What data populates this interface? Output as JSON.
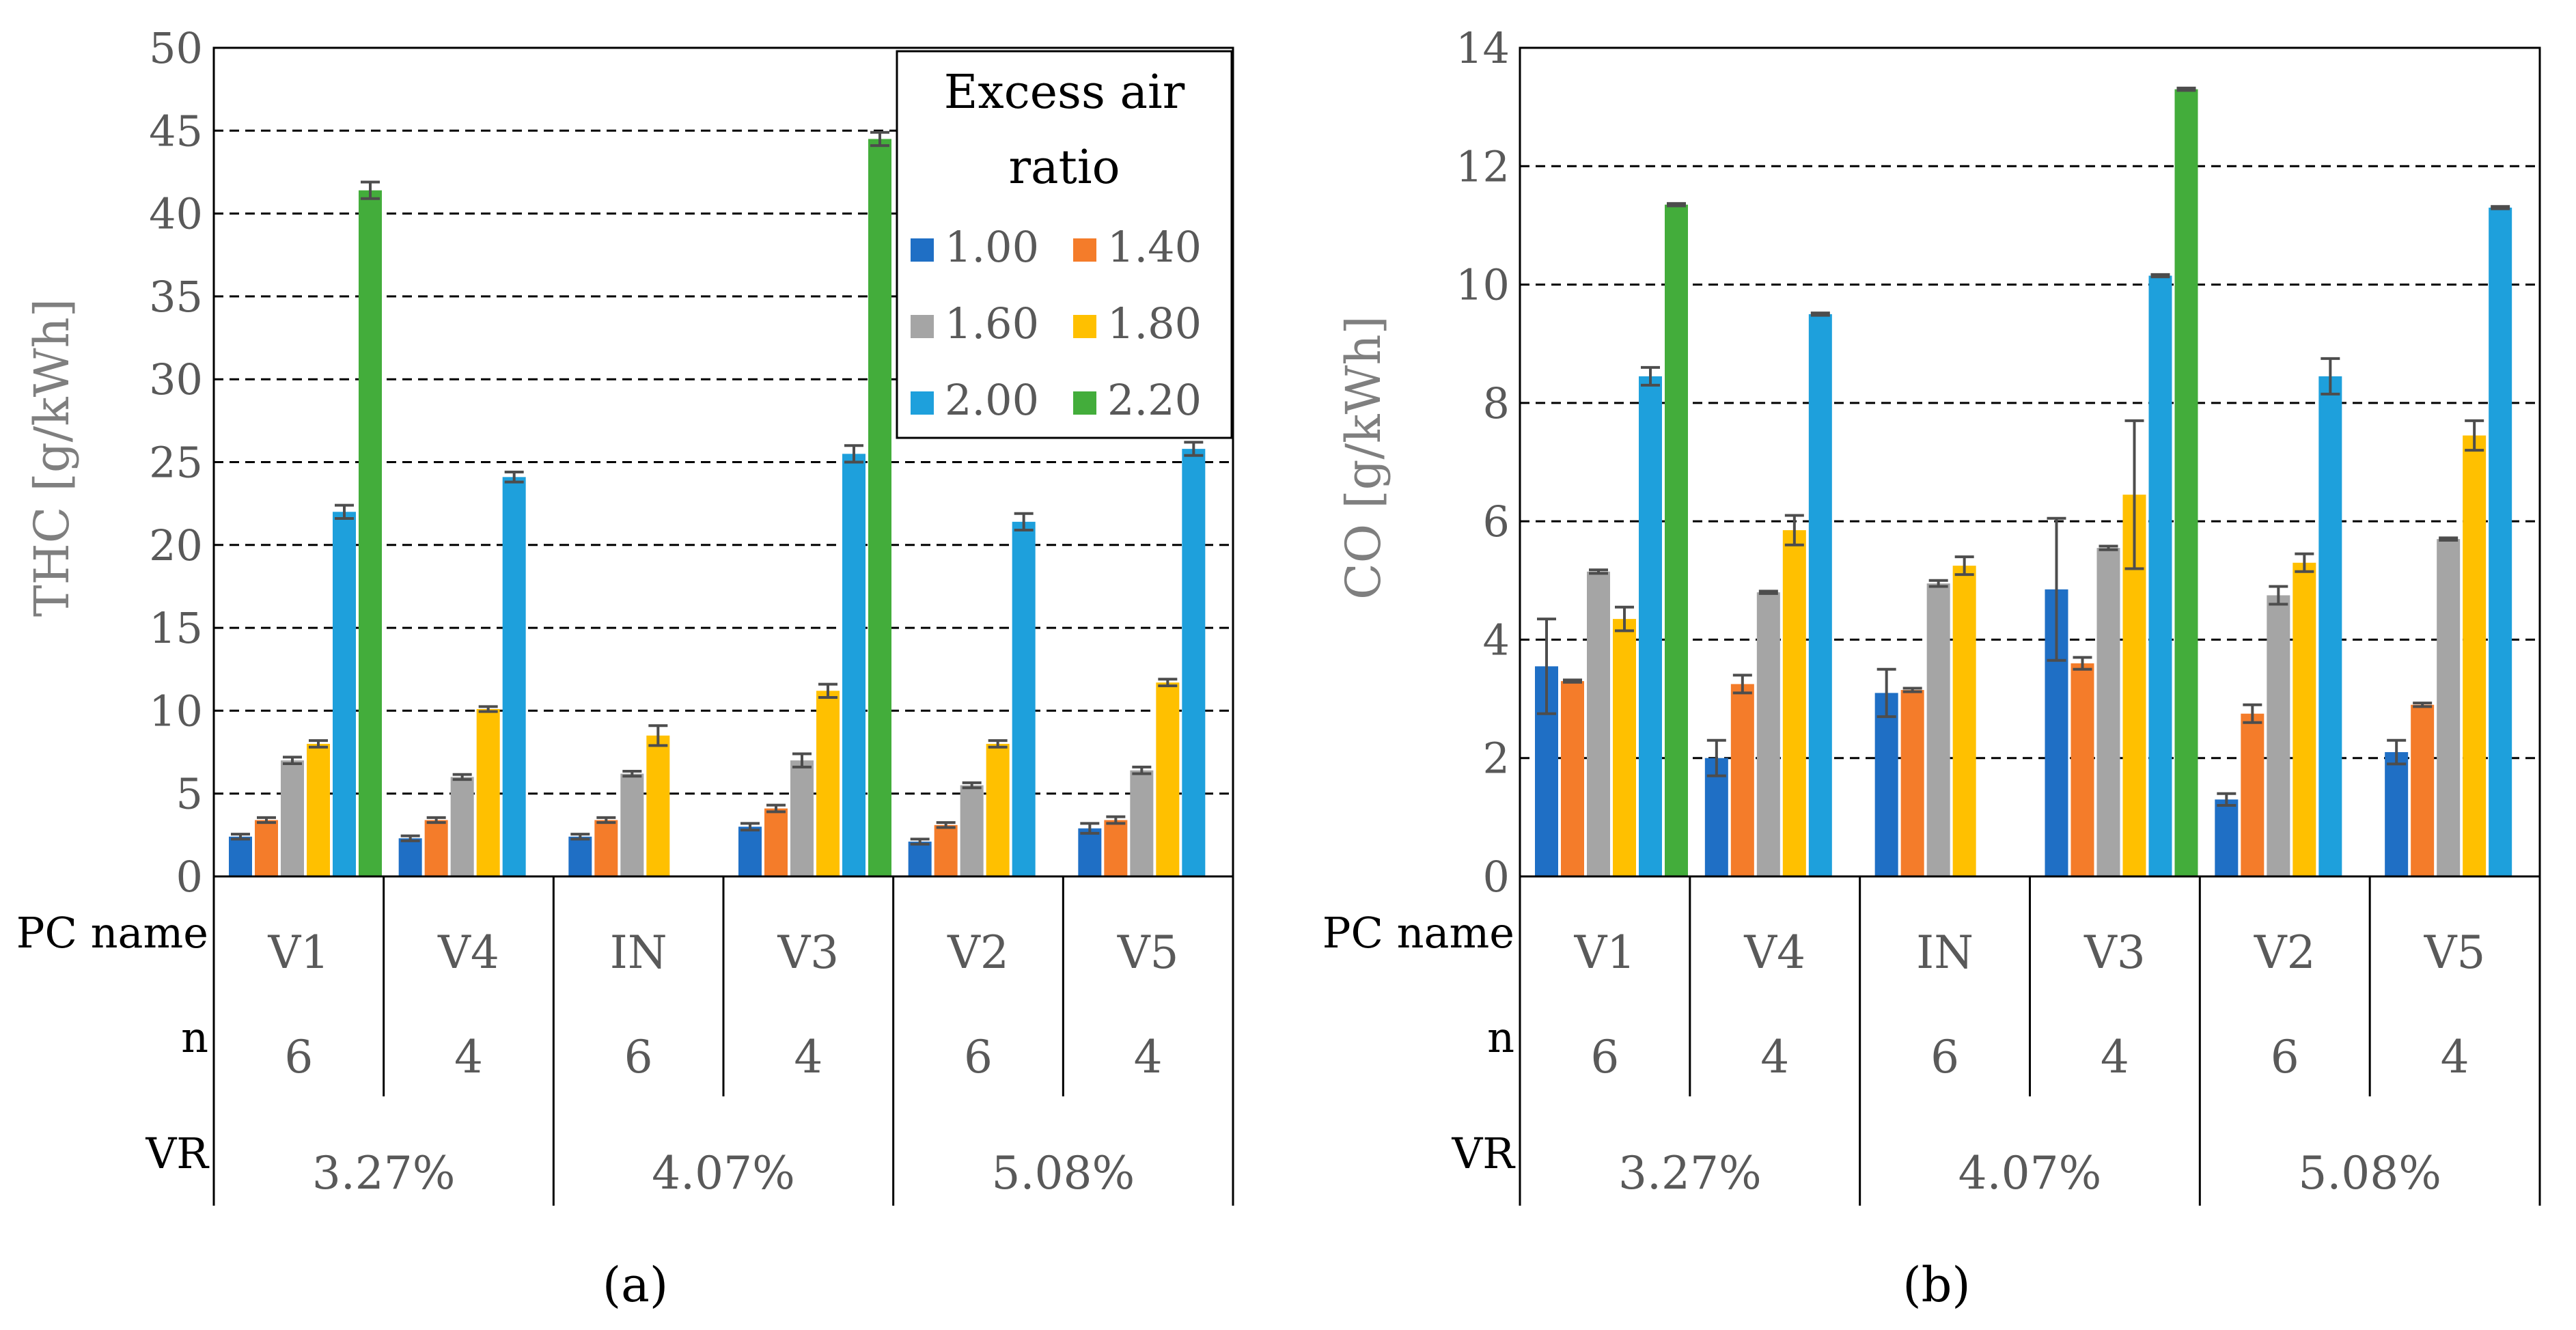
{
  "legend": {
    "title_line1": "Excess air",
    "title_line2": "ratio"
  },
  "table_labels": {
    "pc_name": "PC name",
    "n": "n",
    "vr": "VR"
  },
  "groups": {
    "pc_names": [
      "V1",
      "V4",
      "IN",
      "V3",
      "V2",
      "V5"
    ],
    "n_values": [
      "6",
      "4",
      "6",
      "4",
      "6",
      "4"
    ],
    "vr_values": [
      "3.27%",
      "4.07%",
      "5.08%"
    ]
  },
  "chart_data": [
    {
      "type": "bar",
      "panel_label": "(a)",
      "ylabel": "THC [g/kWh]",
      "ylim": [
        0,
        50
      ],
      "yticks": [
        0,
        5,
        10,
        15,
        20,
        25,
        30,
        35,
        40,
        45,
        50
      ],
      "grid": "horizontal dashed",
      "legend_position": "top-right",
      "categories": [
        "V1",
        "V4",
        "IN",
        "V3",
        "V2",
        "V5"
      ],
      "series": [
        {
          "name": "1.00",
          "color": "#1f6fc5",
          "values": [
            2.4,
            2.3,
            2.4,
            3.0,
            2.1,
            2.9
          ],
          "errors": [
            0.15,
            0.15,
            0.15,
            0.2,
            0.15,
            0.3
          ]
        },
        {
          "name": "1.40",
          "color": "#f47c2a",
          "values": [
            3.4,
            3.4,
            3.4,
            4.1,
            3.1,
            3.4
          ],
          "errors": [
            0.15,
            0.15,
            0.15,
            0.2,
            0.15,
            0.2
          ]
        },
        {
          "name": "1.60",
          "color": "#a5a5a5",
          "values": [
            7.0,
            6.0,
            6.2,
            7.0,
            5.5,
            6.4
          ],
          "errors": [
            0.2,
            0.15,
            0.15,
            0.4,
            0.15,
            0.2
          ]
        },
        {
          "name": "1.80",
          "color": "#ffc000",
          "values": [
            8.0,
            10.1,
            8.5,
            11.2,
            8.0,
            11.7
          ],
          "errors": [
            0.2,
            0.15,
            0.6,
            0.4,
            0.2,
            0.2
          ]
        },
        {
          "name": "2.00",
          "color": "#1ea0dc",
          "values": [
            22.0,
            24.1,
            null,
            25.5,
            21.4,
            25.8
          ],
          "errors": [
            0.4,
            0.3,
            null,
            0.5,
            0.5,
            0.4
          ]
        },
        {
          "name": "2.20",
          "color": "#43ad3b",
          "values": [
            41.4,
            null,
            null,
            44.5,
            null,
            null
          ],
          "errors": [
            0.5,
            null,
            null,
            0.4,
            null,
            null
          ]
        }
      ]
    },
    {
      "type": "bar",
      "panel_label": "(b)",
      "ylabel": "CO [g/kWh]",
      "ylim": [
        0,
        14
      ],
      "yticks": [
        0,
        2,
        4,
        6,
        8,
        10,
        12,
        14
      ],
      "grid": "horizontal dashed",
      "categories": [
        "V1",
        "V4",
        "IN",
        "V3",
        "V2",
        "V5"
      ],
      "series": [
        {
          "name": "1.00",
          "color": "#1f6fc5",
          "values": [
            3.55,
            2.0,
            3.1,
            4.85,
            1.3,
            2.1
          ],
          "errors": [
            0.8,
            0.3,
            0.4,
            1.2,
            0.1,
            0.2
          ]
        },
        {
          "name": "1.40",
          "color": "#f47c2a",
          "values": [
            3.3,
            3.25,
            3.15,
            3.6,
            2.75,
            2.9
          ],
          "errors": [
            0.02,
            0.15,
            0.03,
            0.1,
            0.15,
            0.03
          ]
        },
        {
          "name": "1.60",
          "color": "#a5a5a5",
          "values": [
            5.15,
            4.8,
            4.95,
            5.55,
            4.75,
            5.7
          ],
          "errors": [
            0.03,
            0.02,
            0.05,
            0.03,
            0.15,
            0.02
          ]
        },
        {
          "name": "1.80",
          "color": "#ffc000",
          "values": [
            4.35,
            5.85,
            5.25,
            6.45,
            5.3,
            7.45
          ],
          "errors": [
            0.2,
            0.25,
            0.15,
            1.25,
            0.15,
            0.25
          ]
        },
        {
          "name": "2.00",
          "color": "#1ea0dc",
          "values": [
            8.45,
            9.5,
            null,
            10.15,
            8.45,
            11.3
          ],
          "errors": [
            0.15,
            0.02,
            null,
            0.02,
            0.3,
            0.02
          ]
        },
        {
          "name": "2.20",
          "color": "#43ad3b",
          "values": [
            11.35,
            null,
            null,
            13.3,
            null,
            null
          ],
          "errors": [
            0.02,
            null,
            null,
            0.02,
            null,
            null
          ]
        }
      ]
    }
  ]
}
